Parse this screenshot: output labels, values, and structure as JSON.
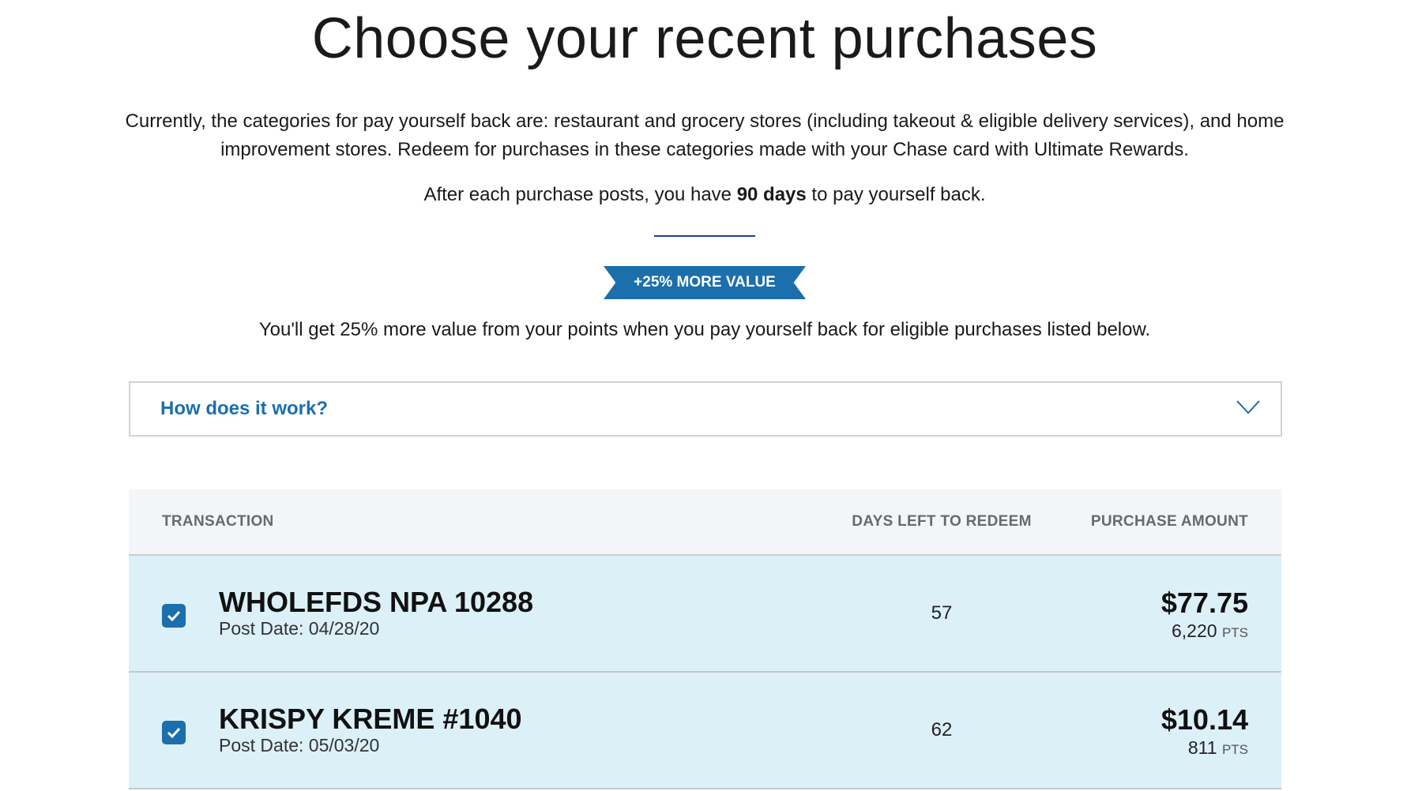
{
  "page": {
    "title": "Choose your recent purchases",
    "intro": "Currently, the categories for pay yourself back are: restaurant and grocery stores (including takeout & eligible delivery services), and home improvement stores. Redeem for purchases in these categories made with your Chase card with Ultimate Rewards.",
    "days_prefix": "After each purchase posts, you have ",
    "days_bold": "90 days",
    "days_suffix": " to pay yourself back.",
    "badge": "+25% MORE VALUE",
    "more_value_text": "You'll get 25% more value from your points when you pay yourself back for eligible purchases listed below.",
    "accent": "#1b6fad"
  },
  "accordion": {
    "label": "How does it work?",
    "icon": "chevron-down-icon"
  },
  "table": {
    "headers": {
      "transaction": "TRANSACTION",
      "days": "DAYS LEFT TO REDEEM",
      "amount": "PURCHASE AMOUNT"
    },
    "rows": [
      {
        "checked": true,
        "name": "WHOLEFDS NPA 10288",
        "post_date": "Post Date: 04/28/20",
        "days_left": "57",
        "amount": "$77.75",
        "points": "6,220",
        "pts_label": "PTS"
      },
      {
        "checked": true,
        "name": "KRISPY KREME #1040",
        "post_date": "Post Date: 05/03/20",
        "days_left": "62",
        "amount": "$10.14",
        "points": "811",
        "pts_label": "PTS"
      }
    ]
  }
}
